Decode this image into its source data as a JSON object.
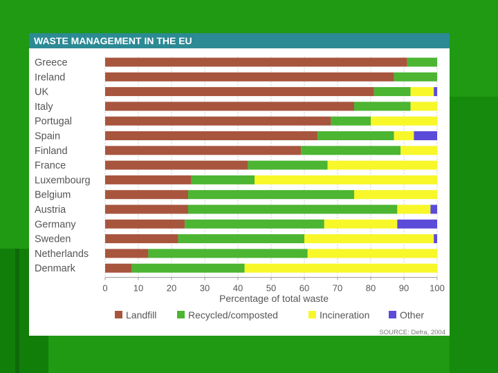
{
  "colors": {
    "Landfill": "#a8553e",
    "Recycled/composted": "#4cb532",
    "Incineration": "#f7f72a",
    "Other": "#5b4bd9"
  },
  "chart_data": {
    "type": "bar",
    "orientation": "horizontal",
    "stacked": true,
    "title": "WASTE MANAGEMENT IN THE EU",
    "xlabel": "Percentage of total waste",
    "ylabel": "",
    "xlim": [
      0,
      100
    ],
    "xticks": [
      0,
      10,
      20,
      30,
      40,
      50,
      60,
      70,
      80,
      90,
      100
    ],
    "legend_position": "bottom",
    "grid": true,
    "source": "SOURCE: Defra, 2004",
    "categories": [
      "Greece",
      "Ireland",
      "UK",
      "Italy",
      "Portugal",
      "Spain",
      "Finland",
      "France",
      "Luxembourg",
      "Belgium",
      "Austria",
      "Germany",
      "Sweden",
      "Netherlands",
      "Denmark"
    ],
    "series": [
      {
        "name": "Landfill",
        "values": [
          91,
          87,
          81,
          75,
          68,
          64,
          59,
          43,
          26,
          25,
          25,
          24,
          22,
          13,
          8
        ]
      },
      {
        "name": "Recycled/composted",
        "values": [
          9,
          13,
          11,
          17,
          12,
          23,
          30,
          24,
          19,
          50,
          63,
          42,
          38,
          48,
          34
        ]
      },
      {
        "name": "Incineration",
        "values": [
          0,
          0,
          7,
          8,
          20,
          6,
          11,
          33,
          55,
          25,
          10,
          22,
          39,
          39,
          58
        ]
      },
      {
        "name": "Other",
        "values": [
          0,
          0,
          1,
          0,
          0,
          7,
          0,
          0,
          0,
          0,
          2,
          12,
          1,
          0,
          0
        ]
      }
    ]
  }
}
